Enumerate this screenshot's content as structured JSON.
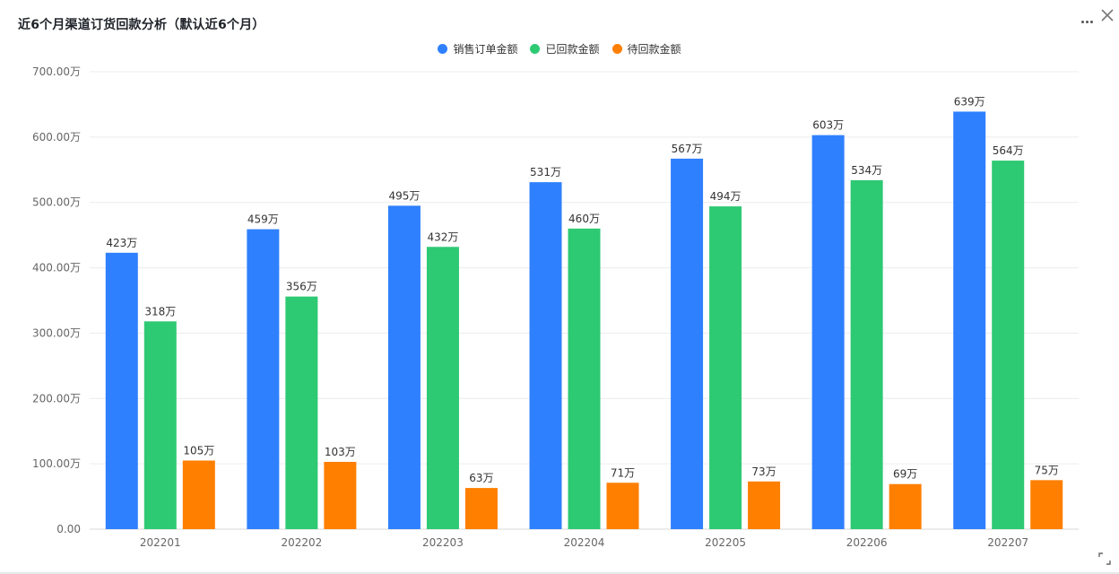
{
  "header": {
    "title": "近6个月渠道订货回款分析（默认近6个月）",
    "more_icon": "more-horizontal-icon",
    "close_icon": "close-icon",
    "expand_icon": "expand-icon"
  },
  "chart_data": {
    "type": "bar",
    "title": "近6个月渠道订货回款分析（默认近6个月）",
    "categories": [
      "202201",
      "202202",
      "202203",
      "202204",
      "202205",
      "202206",
      "202207"
    ],
    "series": [
      {
        "name": "销售订单金额",
        "color": "#2f80fe",
        "values": [
          423,
          459,
          495,
          531,
          567,
          603,
          639
        ]
      },
      {
        "name": "已回款金额",
        "color": "#2ec973",
        "values": [
          318,
          356,
          432,
          460,
          494,
          534,
          564
        ]
      },
      {
        "name": "待回款金额",
        "color": "#ff7f00",
        "values": [
          105,
          103,
          63,
          71,
          73,
          69,
          75
        ]
      }
    ],
    "value_unit": "万",
    "ylim": [
      0,
      700
    ],
    "yticks": [
      "0.00",
      "100.00万",
      "200.00万",
      "300.00万",
      "400.00万",
      "500.00万",
      "600.00万",
      "700.00万"
    ],
    "grid": true,
    "legend_position": "top-center"
  }
}
